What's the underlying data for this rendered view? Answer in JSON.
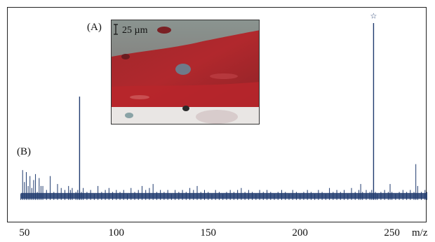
{
  "panels": {
    "a_label": "(A)",
    "b_label": "(B)",
    "scale_bar_text": "25 µm"
  },
  "chart_data": {
    "type": "line",
    "title": "",
    "xlabel": "m/z",
    "ylabel": "",
    "xlim": [
      47,
      270
    ],
    "ylim": [
      0,
      100
    ],
    "x_ticks": [
      50,
      100,
      150,
      200,
      250
    ],
    "grid": false,
    "color": "#1f3a6e",
    "baseline": 7,
    "series": [
      {
        "x": [
          48,
          49,
          50,
          51,
          52,
          53,
          54,
          55,
          56,
          57,
          58,
          59,
          60,
          62,
          64,
          66,
          68,
          70,
          72,
          74,
          75,
          76,
          78,
          79,
          80,
          81,
          82,
          84,
          86,
          88,
          90,
          92,
          94,
          96,
          98,
          100,
          102,
          104,
          106,
          108,
          110,
          112,
          114,
          116,
          118,
          120,
          122,
          124,
          126,
          128,
          130,
          132,
          134,
          136,
          138,
          140,
          142,
          144,
          146,
          148,
          150,
          152,
          154,
          156,
          158,
          160,
          162,
          164,
          166,
          168,
          170,
          172,
          174,
          176,
          178,
          180,
          182,
          184,
          186,
          188,
          190,
          192,
          194,
          196,
          198,
          200,
          202,
          204,
          206,
          208,
          210,
          212,
          214,
          216,
          218,
          220,
          222,
          224,
          226,
          228,
          230,
          232,
          233,
          234,
          236,
          238,
          239,
          240,
          241,
          242,
          244,
          246,
          248,
          249,
          250,
          252,
          254,
          256,
          258,
          260,
          262,
          263,
          264,
          266,
          268,
          269
        ],
        "y": [
          8,
          20,
          14,
          19,
          12,
          17,
          11,
          15,
          18,
          9,
          16,
          12,
          12,
          10,
          17,
          9,
          13,
          11,
          10,
          12,
          10,
          11,
          9,
          10,
          57,
          9,
          11,
          9,
          10,
          8,
          12,
          9,
          10,
          11,
          9,
          10,
          9,
          10,
          8,
          11,
          9,
          10,
          12,
          10,
          11,
          13,
          9,
          10,
          9,
          10,
          8,
          10,
          9,
          10,
          9,
          11,
          10,
          12,
          9,
          10,
          9,
          8,
          10,
          9,
          8,
          9,
          10,
          9,
          10,
          11,
          9,
          10,
          9,
          8,
          10,
          9,
          10,
          9,
          8,
          9,
          10,
          9,
          8,
          10,
          9,
          8,
          9,
          10,
          9,
          8,
          10,
          9,
          8,
          11,
          9,
          10,
          9,
          10,
          8,
          11,
          9,
          10,
          13,
          9,
          10,
          9,
          10,
          94,
          9,
          8,
          9,
          10,
          9,
          13,
          9,
          8,
          9,
          10,
          9,
          10,
          9,
          23,
          12,
          9,
          10,
          9
        ]
      }
    ],
    "annotations": [
      {
        "x": 240,
        "text": "☆"
      }
    ]
  }
}
